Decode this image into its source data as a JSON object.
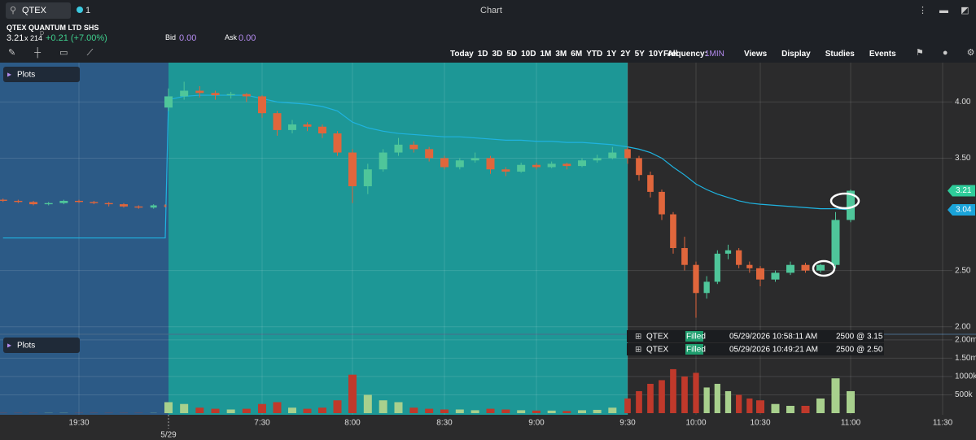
{
  "header": {
    "search": "QTEX",
    "link_count": "1",
    "window_title": "Chart",
    "security_name": "QTEX QUANTUM LTD SHS",
    "last": "3.21",
    "size": "x 214",
    "size_flag": "D",
    "change": "+0.21 (+7.00%)",
    "bid_label": "Bid",
    "bid": "0.00",
    "ask_label": "Ask",
    "ask": "0.00"
  },
  "toolbar": {
    "ranges": [
      "Today",
      "1D",
      "3D",
      "5D",
      "10D",
      "1M",
      "3M",
      "6M",
      "YTD",
      "1Y",
      "2Y",
      "5Y",
      "10Y",
      "All"
    ],
    "frequency_label": "Frequency:",
    "frequency": "1MIN",
    "menus": [
      "Views",
      "Display",
      "Studies",
      "Events"
    ]
  },
  "panels": {
    "price_plots": "Plots",
    "volume_plots": "Plots"
  },
  "chart_data": {
    "type": "candlestick",
    "xlim": [
      -296,
      693
    ],
    "xticks": [
      {
        "value": -270,
        "label": "19:30"
      },
      {
        "value": 450,
        "label": "7:30"
      },
      {
        "value": 480,
        "label": "8:00"
      },
      {
        "value": 510,
        "label": "8:30"
      },
      {
        "value": 540,
        "label": "9:00"
      },
      {
        "value": 570,
        "label": "9:30"
      },
      {
        "value": 600,
        "label": "10:00"
      },
      {
        "value": 630,
        "label": "10:30"
      },
      {
        "value": 660,
        "label": "11:00"
      },
      {
        "value": 690,
        "label": "11:30"
      }
    ],
    "date_label": "5/29",
    "ylim": [
      1.94,
      4.35
    ],
    "yticks": [
      {
        "value": 2,
        "label": "2.00"
      },
      {
        "value": 2.5,
        "label": "2.50"
      },
      {
        "value": 3.5,
        "label": "3.50"
      },
      {
        "value": 4,
        "label": "4.00"
      }
    ],
    "volume_ylim": [
      0,
      2130000
    ],
    "volume_ticks": [
      {
        "value": 500000,
        "label": "500k"
      },
      {
        "value": 1000000,
        "label": "1000k"
      },
      {
        "value": 1500000,
        "label": "1.50m"
      },
      {
        "value": 2000000,
        "label": "2.00m"
      }
    ],
    "up_color": "#4fc69a",
    "down_color": "#e0663c",
    "vwap_color": "#1fb3e0",
    "candles": [
      [
        -295,
        3.13,
        3.14,
        3.11,
        3.12,
        5000,
        2.79
      ],
      [
        -290,
        3.12,
        3.13,
        3.1,
        3.11,
        5000,
        2.79
      ],
      [
        -285,
        3.11,
        3.12,
        3.08,
        3.09,
        5000,
        2.79
      ],
      [
        -280,
        3.09,
        3.11,
        3.08,
        3.1,
        5000,
        2.79
      ],
      [
        -275,
        3.1,
        3.13,
        3.09,
        3.12,
        5000,
        2.79
      ],
      [
        -270,
        3.12,
        3.13,
        3.1,
        3.11,
        5000,
        2.79
      ],
      [
        -265,
        3.11,
        3.12,
        3.09,
        3.1,
        5000,
        2.79
      ],
      [
        -260,
        3.1,
        3.11,
        3.07,
        3.09,
        5000,
        2.79
      ],
      [
        -255,
        3.09,
        3.1,
        3.06,
        3.07,
        5000,
        2.79
      ],
      [
        -250,
        3.07,
        3.08,
        3.05,
        3.06,
        5000,
        2.79
      ],
      [
        -245,
        3.06,
        3.09,
        3.05,
        3.08,
        5000,
        2.79
      ],
      [
        -240,
        3.08,
        3.09,
        3.06,
        3.07,
        5000,
        2.79
      ],
      [
        420,
        3.95,
        4.12,
        3.92,
        4.05,
        300000,
        4.02
      ],
      [
        425,
        4.05,
        4.18,
        4.02,
        4.1,
        250000,
        4.05
      ],
      [
        430,
        4.1,
        4.14,
        4.04,
        4.08,
        150000,
        4.06
      ],
      [
        435,
        4.08,
        4.1,
        4.02,
        4.06,
        120000,
        4.06
      ],
      [
        440,
        4.06,
        4.09,
        4.03,
        4.07,
        100000,
        4.06
      ],
      [
        445,
        4.07,
        4.08,
        4.0,
        4.05,
        120000,
        4.06
      ],
      [
        450,
        4.05,
        4.06,
        3.86,
        3.9,
        250000,
        4.03
      ],
      [
        455,
        3.9,
        3.92,
        3.7,
        3.75,
        300000,
        4.0
      ],
      [
        460,
        3.75,
        3.84,
        3.72,
        3.8,
        150000,
        3.99
      ],
      [
        465,
        3.8,
        3.82,
        3.74,
        3.78,
        120000,
        3.98
      ],
      [
        470,
        3.78,
        3.8,
        3.68,
        3.72,
        150000,
        3.96
      ],
      [
        475,
        3.72,
        3.74,
        3.52,
        3.55,
        350000,
        3.92
      ],
      [
        480,
        3.55,
        3.58,
        3.1,
        3.25,
        1050000,
        3.82
      ],
      [
        485,
        3.25,
        3.45,
        3.18,
        3.4,
        500000,
        3.77
      ],
      [
        490,
        3.4,
        3.58,
        3.38,
        3.55,
        350000,
        3.74
      ],
      [
        495,
        3.55,
        3.68,
        3.52,
        3.62,
        300000,
        3.72
      ],
      [
        500,
        3.62,
        3.65,
        3.55,
        3.58,
        150000,
        3.71
      ],
      [
        505,
        3.58,
        3.6,
        3.47,
        3.5,
        120000,
        3.7
      ],
      [
        510,
        3.5,
        3.52,
        3.4,
        3.42,
        100000,
        3.69
      ],
      [
        515,
        3.42,
        3.5,
        3.4,
        3.48,
        100000,
        3.69
      ],
      [
        520,
        3.48,
        3.55,
        3.46,
        3.5,
        80000,
        3.68
      ],
      [
        525,
        3.5,
        3.52,
        3.36,
        3.4,
        120000,
        3.67
      ],
      [
        530,
        3.4,
        3.42,
        3.34,
        3.38,
        100000,
        3.66
      ],
      [
        535,
        3.38,
        3.46,
        3.37,
        3.44,
        80000,
        3.66
      ],
      [
        540,
        3.44,
        3.46,
        3.4,
        3.42,
        70000,
        3.65
      ],
      [
        545,
        3.42,
        3.47,
        3.41,
        3.45,
        70000,
        3.65
      ],
      [
        550,
        3.45,
        3.46,
        3.4,
        3.43,
        60000,
        3.64
      ],
      [
        555,
        3.43,
        3.5,
        3.42,
        3.48,
        80000,
        3.64
      ],
      [
        560,
        3.48,
        3.53,
        3.46,
        3.5,
        90000,
        3.63
      ],
      [
        565,
        3.5,
        3.6,
        3.49,
        3.55,
        150000,
        3.62
      ],
      [
        570,
        3.58,
        3.6,
        3.45,
        3.5,
        400000,
        3.6
      ],
      [
        575,
        3.5,
        3.52,
        3.3,
        3.35,
        600000,
        3.58
      ],
      [
        580,
        3.35,
        3.38,
        3.15,
        3.2,
        800000,
        3.55
      ],
      [
        585,
        3.2,
        3.22,
        2.95,
        3.0,
        900000,
        3.5
      ],
      [
        590,
        3.0,
        3.02,
        2.65,
        2.7,
        1200000,
        3.42
      ],
      [
        595,
        2.7,
        2.8,
        2.5,
        2.55,
        1000000,
        3.35
      ],
      [
        600,
        2.55,
        2.58,
        2.08,
        2.3,
        1100000,
        3.27
      ],
      [
        605,
        2.3,
        2.45,
        2.25,
        2.4,
        700000,
        3.22
      ],
      [
        610,
        2.4,
        2.68,
        2.38,
        2.65,
        800000,
        3.18
      ],
      [
        615,
        2.65,
        2.73,
        2.6,
        2.68,
        600000,
        3.15
      ],
      [
        620,
        2.68,
        2.7,
        2.52,
        2.55,
        500000,
        3.12
      ],
      [
        625,
        2.55,
        2.58,
        2.48,
        2.52,
        400000,
        3.1
      ],
      [
        630,
        2.52,
        2.54,
        2.36,
        2.42,
        350000,
        3.09
      ],
      [
        635,
        2.42,
        2.5,
        2.4,
        2.48,
        250000,
        3.08
      ],
      [
        640,
        2.48,
        2.58,
        2.46,
        2.55,
        200000,
        3.07
      ],
      [
        645,
        2.55,
        2.57,
        2.48,
        2.5,
        200000,
        3.06
      ],
      [
        650,
        2.5,
        2.56,
        2.48,
        2.55,
        400000,
        3.05
      ],
      [
        655,
        2.55,
        3.02,
        2.52,
        2.95,
        950000,
        3.05
      ],
      [
        660,
        2.95,
        3.22,
        2.93,
        3.21,
        600000,
        3.04
      ]
    ],
    "price_tags": [
      {
        "value": 3.21,
        "label": "3.21",
        "color": "#2ecc9a"
      },
      {
        "value": 3.04,
        "label": "3.04",
        "color": "#1aa3d9"
      }
    ]
  },
  "orders": [
    {
      "symbol": "QTEX",
      "status": "Filled",
      "time": "05/29/2026 10:58:11 AM",
      "fill": "2500 @ 3.15"
    },
    {
      "symbol": "QTEX",
      "status": "Filled",
      "time": "05/29/2026 10:49:21 AM",
      "fill": "2500 @ 2.50"
    }
  ]
}
